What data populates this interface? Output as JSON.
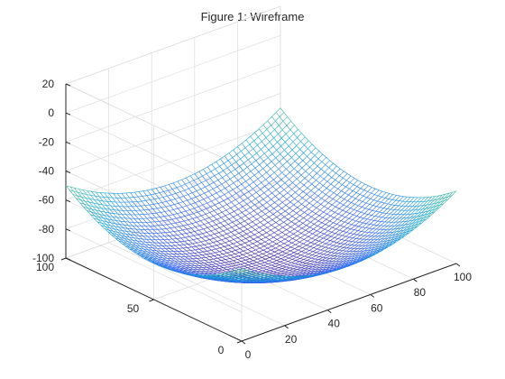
{
  "window": {
    "title": "Figure 1: Wireframe"
  },
  "chart_data": {
    "type": "surface-wireframe",
    "title": "Figure 1: Wireframe",
    "function": "z = (x-50)^2/100 + (y-50)^2/100 - 100 (approximate paraboloid)",
    "x_range": [
      0,
      100
    ],
    "y_range": [
      0,
      100
    ],
    "z_range": [
      -100,
      20
    ],
    "x_ticks": [
      {
        "value": 0,
        "label": "0"
      },
      {
        "value": 20,
        "label": "20"
      },
      {
        "value": 40,
        "label": "40"
      },
      {
        "value": 60,
        "label": "60"
      },
      {
        "value": 80,
        "label": "80"
      },
      {
        "value": 100,
        "label": "100"
      }
    ],
    "y_ticks": [
      {
        "value": 0,
        "label": "0"
      },
      {
        "value": 50,
        "label": "50"
      },
      {
        "value": 100,
        "label": "100"
      }
    ],
    "z_ticks": [
      {
        "value": -100,
        "label": "-100"
      },
      {
        "value": -80,
        "label": "-80"
      },
      {
        "value": -60,
        "label": "-60"
      },
      {
        "value": -40,
        "label": "-40"
      },
      {
        "value": -20,
        "label": "-20"
      },
      {
        "value": 0,
        "label": "0"
      },
      {
        "value": 20,
        "label": "20"
      }
    ],
    "mesh_divisions": 50,
    "grid": true,
    "colormap": "parula",
    "colormap_stops": [
      "#3e26a8",
      "#2f6af5",
      "#17a7d1",
      "#3ebc8f",
      "#a9bd3b",
      "#f5ba3c",
      "#f9e51e"
    ],
    "colors": {
      "background": "#ffffff",
      "axes": "#262626",
      "grid": "#dcdcdc"
    }
  }
}
